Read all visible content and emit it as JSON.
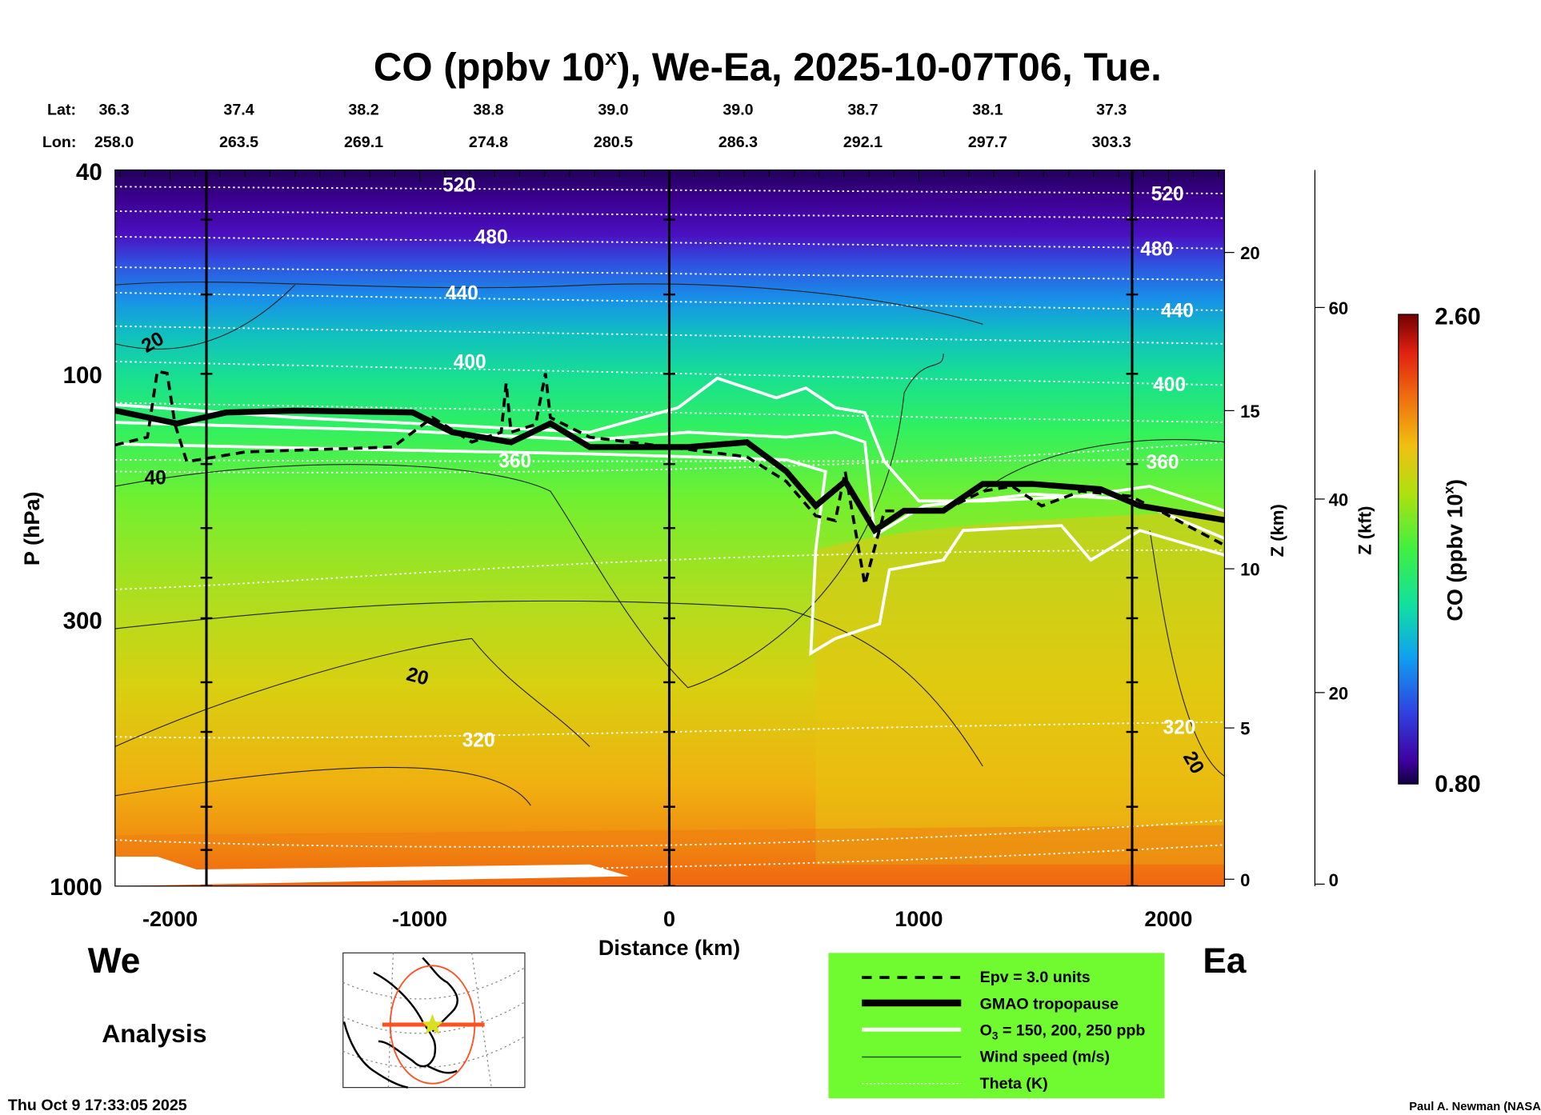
{
  "chart_data": {
    "type": "heatmap",
    "title_prefix": "CO (ppbv 10",
    "title_sup": "x",
    "title_suffix": "), We-Ea, 2025-10-07T06, Tue.",
    "lat_label": "Lat:",
    "lon_label": "Lon:",
    "lats": [
      "36.3",
      "37.4",
      "38.2",
      "38.8",
      "39.0",
      "39.0",
      "38.7",
      "38.1",
      "37.3"
    ],
    "lons": [
      "258.0",
      "263.5",
      "269.1",
      "274.8",
      "280.5",
      "286.3",
      "292.1",
      "297.7",
      "303.3"
    ],
    "xlabel": "Distance (km)",
    "ylabel": "P (hPa)",
    "y2label": "Z (km)",
    "y3label": "Z (kft)",
    "xlim": [
      -2220,
      2224
    ],
    "ylim_hpa": [
      1000,
      40
    ],
    "x_ticks": [
      "-2000",
      "-1000",
      "0",
      "1000",
      "2000"
    ],
    "y_ticks": [
      "40",
      "100",
      "300",
      "1000"
    ],
    "z_km_ticks": [
      "20",
      "15",
      "10",
      "5",
      "0"
    ],
    "z_kft_ticks": [
      "60",
      "40",
      "20",
      "0"
    ],
    "colorbar": {
      "label_prefix": "CO (ppbv 10",
      "label_sup": "x",
      "label_suffix": ")",
      "max": "2.60",
      "min": "0.80"
    },
    "theta_labels": [
      "520",
      "480",
      "440",
      "400",
      "360",
      "320"
    ],
    "theta_labels_right": [
      "520",
      "480",
      "440",
      "400",
      "360",
      "320"
    ],
    "wind_labels": [
      "20",
      "40",
      "20",
      "20"
    ],
    "tropopause": [
      [
        -2220,
        118
      ],
      [
        -1972,
        125
      ],
      [
        -1776,
        119
      ],
      [
        -1500,
        118
      ],
      [
        -1028,
        119
      ],
      [
        -870,
        130
      ],
      [
        -634,
        136
      ],
      [
        -476,
        125
      ],
      [
        -319,
        139
      ],
      [
        75,
        139
      ],
      [
        311,
        136
      ],
      [
        469,
        155
      ],
      [
        587,
        181
      ],
      [
        705,
        162
      ],
      [
        823,
        202
      ],
      [
        941,
        185
      ],
      [
        1098,
        185
      ],
      [
        1256,
        164
      ],
      [
        1453,
        164
      ],
      [
        1728,
        168
      ],
      [
        1886,
        181
      ],
      [
        2224,
        193
      ]
    ]
  },
  "labels": {
    "west": "We",
    "east": "Ea",
    "analysis": "Analysis",
    "timestamp": "Thu Oct  9 17:33:05 2025",
    "credit": "Paul A. Newman (NASA"
  },
  "legend": {
    "epv": "Epv = 3.0 units",
    "tropopause": "GMAO tropopause",
    "o3_prefix": "O",
    "o3_sub": "3",
    "o3_suffix": " = 150, 200, 250 ppb",
    "wind": "Wind speed (m/s)",
    "theta": "Theta (K)"
  },
  "colors": {
    "legend_bg": "#70fa30",
    "map_track": "#ff5020",
    "map_star": "#d8e020"
  }
}
